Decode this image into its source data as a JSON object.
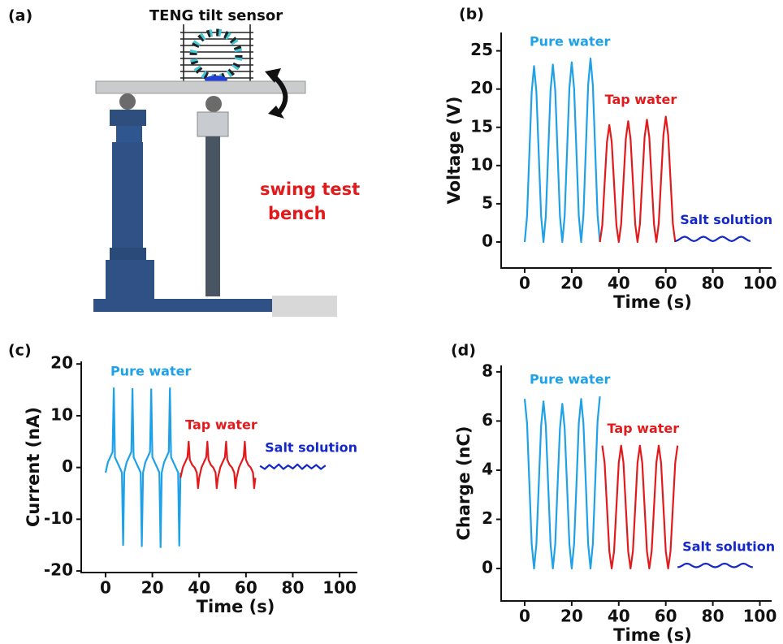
{
  "panel_a": {
    "label": "(a)",
    "title": "TENG tilt sensor",
    "annotation": [
      "swing test",
      "bench"
    ]
  },
  "chart_data": [
    {
      "type": "line",
      "panel": "(b)",
      "x_label": "Time (s)",
      "y_label": "Voltage (V)",
      "xlim": [
        -10,
        105
      ],
      "ylim": [
        -3.4,
        27.4
      ],
      "xticks": [
        0,
        20,
        40,
        60,
        80,
        100
      ],
      "yticks": [
        0,
        5,
        10,
        15,
        20,
        25
      ],
      "series": [
        {
          "name": "Pure water",
          "color": "#1ea1e6",
          "x": [
            0,
            1,
            2,
            3,
            4,
            5,
            6,
            7,
            8,
            9,
            10,
            11,
            12,
            13,
            14,
            15,
            16,
            17,
            18,
            19,
            20,
            21,
            22,
            23,
            24,
            25,
            26,
            27,
            28,
            29,
            30,
            31,
            32
          ],
          "values": [
            0,
            3.4,
            11.5,
            19.6,
            23,
            19.6,
            11.5,
            3.4,
            0,
            3.4,
            11.6,
            19.8,
            23.2,
            19.8,
            11.6,
            3.4,
            0,
            3.4,
            11.8,
            20.1,
            23.5,
            20.1,
            11.8,
            3.4,
            0,
            3.5,
            12,
            20.5,
            24,
            20.5,
            12,
            3.5,
            0
          ]
        },
        {
          "name": "Tap water",
          "color": "#e31a1c",
          "x": [
            32,
            33,
            34,
            35,
            36,
            37,
            38,
            39,
            40,
            41,
            42,
            43,
            44,
            45,
            46,
            47,
            48,
            49,
            50,
            51,
            52,
            53,
            54,
            55,
            56,
            57,
            58,
            59,
            60,
            61,
            62,
            63,
            64
          ],
          "values": [
            0,
            2.2,
            7.7,
            13.1,
            15.3,
            13.1,
            7.7,
            2.2,
            0,
            2.3,
            7.9,
            13.5,
            15.8,
            13.5,
            7.9,
            2.3,
            0,
            2.3,
            8,
            13.7,
            16,
            13.7,
            8,
            2.3,
            0,
            2.4,
            8.2,
            14,
            16.4,
            14,
            8.2,
            2.4,
            0
          ]
        },
        {
          "name": "Salt solution",
          "color": "#1428c8",
          "x": [
            64,
            65,
            66,
            67,
            68,
            69,
            70,
            71,
            72,
            73,
            74,
            75,
            76,
            77,
            78,
            79,
            80,
            81,
            82,
            83,
            84,
            85,
            86,
            87,
            88,
            89,
            90,
            91,
            92,
            93,
            94,
            95,
            96
          ],
          "values": [
            0.1,
            0.2,
            0.4,
            0.6,
            0.7,
            0.6,
            0.4,
            0.2,
            0.1,
            0.2,
            0.4,
            0.6,
            0.7,
            0.6,
            0.4,
            0.2,
            0.1,
            0.2,
            0.4,
            0.6,
            0.7,
            0.6,
            0.4,
            0.2,
            0.1,
            0.2,
            0.4,
            0.6,
            0.7,
            0.6,
            0.4,
            0.2,
            0.1
          ]
        }
      ]
    },
    {
      "type": "line",
      "panel": "(c)",
      "x_label": "Time (s)",
      "y_label": "Current (nA)",
      "xlim": [
        -10.4,
        107.6
      ],
      "ylim": [
        -20.3,
        20.5
      ],
      "xticks": [
        0,
        20,
        40,
        60,
        80,
        100
      ],
      "yticks": [
        -20,
        -10,
        0,
        10,
        20
      ],
      "series": [
        {
          "name": "Pure water",
          "color": "#1ea1e6",
          "x": [
            0,
            1,
            2,
            3,
            3.5,
            4,
            5,
            6,
            7,
            7.5,
            8,
            9,
            10,
            11,
            11.5,
            12,
            13,
            14,
            15,
            15.5,
            16,
            17,
            18,
            19,
            19.5,
            20,
            21,
            22,
            23,
            23.5,
            24,
            25,
            26,
            27,
            27.5,
            28,
            29,
            30,
            31,
            31.5,
            32
          ],
          "values": [
            -1,
            1,
            2,
            3,
            15.3,
            2,
            1,
            0,
            -1,
            -15,
            -1,
            1,
            2,
            3,
            15.2,
            2,
            1,
            0,
            -1,
            -15.2,
            -1,
            1,
            2,
            3,
            15.1,
            2,
            1,
            0,
            -1,
            -15.4,
            -1,
            1,
            2,
            3,
            15.3,
            2,
            1,
            0,
            -1,
            -15.1,
            -1
          ]
        },
        {
          "name": "Tap water",
          "color": "#e31a1c",
          "x": [
            32,
            33,
            34,
            35,
            35.5,
            36,
            37,
            38,
            39,
            39.5,
            40,
            41,
            42,
            43,
            43.5,
            44,
            45,
            46,
            47,
            47.5,
            48,
            49,
            50,
            51,
            51.5,
            52,
            53,
            54,
            55,
            55.5,
            56,
            57,
            58,
            59,
            59.5,
            60,
            61,
            62,
            63,
            63.5,
            64
          ],
          "values": [
            -2,
            0,
            1,
            2,
            5,
            1.5,
            0.5,
            0,
            -1,
            -4,
            -2,
            0,
            1,
            2,
            5,
            1.5,
            0.5,
            0,
            -1,
            -4,
            -2,
            0,
            1,
            2,
            5,
            1.5,
            0.5,
            0,
            -1,
            -4,
            -2,
            0,
            1,
            2,
            5,
            1.5,
            0.5,
            0,
            -1,
            -4,
            -2
          ]
        },
        {
          "name": "Salt solution",
          "color": "#1428c8",
          "x": [
            66,
            68,
            70,
            72,
            74,
            76,
            78,
            80,
            82,
            84,
            86,
            88,
            90,
            92,
            94
          ],
          "values": [
            0.3,
            -0.3,
            0.5,
            -0.2,
            0.6,
            -0.3,
            0.4,
            -0.2,
            0.6,
            -0.3,
            0.5,
            -0.2,
            0.5,
            -0.3,
            0.4
          ]
        }
      ]
    },
    {
      "type": "line",
      "panel": "(d)",
      "x_label": "Time (s)",
      "y_label": "Charge (nC)",
      "xlim": [
        -10,
        105
      ],
      "ylim": [
        -1.32,
        8.26
      ],
      "xticks": [
        0,
        20,
        40,
        60,
        80,
        100
      ],
      "yticks": [
        0,
        2,
        4,
        6,
        8
      ],
      "series": [
        {
          "name": "Pure water",
          "color": "#1ea1e6",
          "x": [
            0,
            1,
            2,
            3,
            4,
            5,
            6,
            7,
            8,
            9,
            10,
            11,
            12,
            13,
            14,
            15,
            16,
            17,
            18,
            19,
            20,
            21,
            22,
            23,
            24,
            25,
            26,
            27,
            28,
            29,
            30,
            31,
            32
          ],
          "values": [
            6.9,
            5.9,
            3.5,
            1,
            0,
            1,
            3.4,
            5.8,
            6.8,
            5.8,
            3.4,
            1,
            0,
            1,
            3.4,
            5.7,
            6.7,
            5.7,
            3.4,
            1,
            0,
            1,
            3.4,
            5.9,
            6.9,
            5.9,
            3.5,
            1,
            0,
            1,
            3.5,
            6,
            7
          ]
        },
        {
          "name": "Tap water",
          "color": "#e31a1c",
          "x": [
            33,
            34,
            35,
            36,
            37,
            38,
            39,
            40,
            41,
            42,
            43,
            44,
            45,
            46,
            47,
            48,
            49,
            50,
            51,
            52,
            53,
            54,
            55,
            56,
            57,
            58,
            59,
            60,
            61,
            62,
            63,
            64,
            65
          ],
          "values": [
            5,
            4.3,
            2.5,
            0.7,
            0,
            0.7,
            2.5,
            4.3,
            5,
            4.3,
            2.5,
            0.7,
            0,
            0.7,
            2.5,
            4.3,
            5,
            4.3,
            2.5,
            0.7,
            0,
            0.7,
            2.5,
            4.3,
            5,
            4.3,
            2.5,
            0.7,
            0,
            0.7,
            2.5,
            4.3,
            5
          ]
        },
        {
          "name": "Salt solution",
          "color": "#1428c8",
          "x": [
            65,
            66,
            67,
            68,
            69,
            70,
            71,
            72,
            73,
            74,
            75,
            76,
            77,
            78,
            79,
            80,
            81,
            82,
            83,
            84,
            85,
            86,
            87,
            88,
            89,
            90,
            91,
            92,
            93,
            94,
            95,
            96,
            97
          ],
          "values": [
            0.05,
            0.07,
            0.12,
            0.18,
            0.2,
            0.18,
            0.12,
            0.07,
            0.05,
            0.07,
            0.12,
            0.18,
            0.2,
            0.18,
            0.12,
            0.07,
            0.05,
            0.07,
            0.12,
            0.18,
            0.2,
            0.18,
            0.12,
            0.07,
            0.05,
            0.07,
            0.12,
            0.18,
            0.2,
            0.18,
            0.12,
            0.07,
            0.05
          ]
        }
      ]
    }
  ]
}
